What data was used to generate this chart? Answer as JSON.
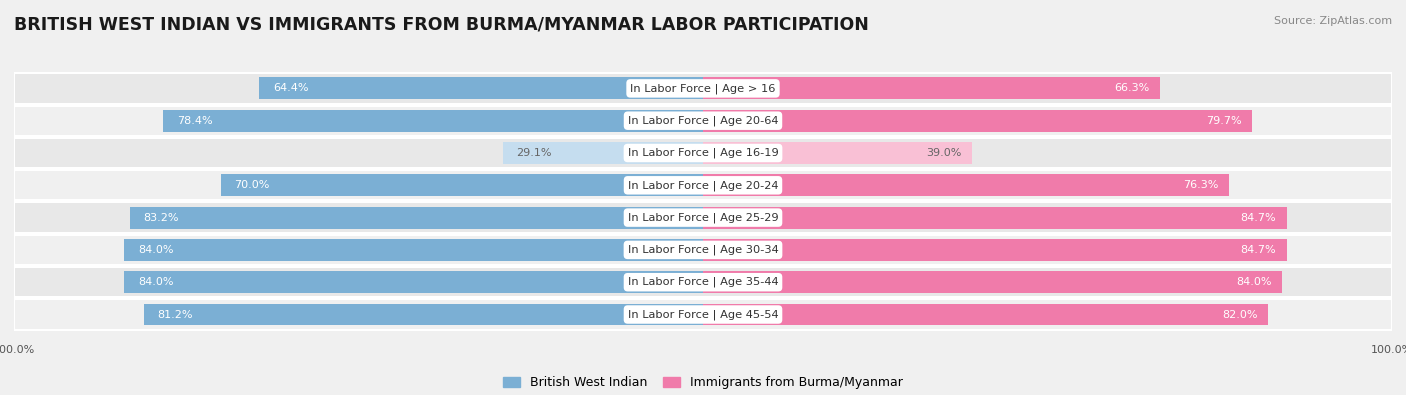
{
  "title": "BRITISH WEST INDIAN VS IMMIGRANTS FROM BURMA/MYANMAR LABOR PARTICIPATION",
  "source": "Source: ZipAtlas.com",
  "categories": [
    "In Labor Force | Age > 16",
    "In Labor Force | Age 20-64",
    "In Labor Force | Age 16-19",
    "In Labor Force | Age 20-24",
    "In Labor Force | Age 25-29",
    "In Labor Force | Age 30-34",
    "In Labor Force | Age 35-44",
    "In Labor Force | Age 45-54"
  ],
  "left_values": [
    64.4,
    78.4,
    29.1,
    70.0,
    83.2,
    84.0,
    84.0,
    81.2
  ],
  "right_values": [
    66.3,
    79.7,
    39.0,
    76.3,
    84.7,
    84.7,
    84.0,
    82.0
  ],
  "left_label": "British West Indian",
  "right_label": "Immigrants from Burma/Myanmar",
  "left_color_strong": "#7BAFD4",
  "left_color_light": "#C5DDEF",
  "right_color_strong": "#F07BAA",
  "right_color_light": "#F9C0D5",
  "bg_color": "#F0F0F0",
  "row_bg_even": "#E8E8E8",
  "row_bg_odd": "#F0F0F0",
  "center_label_bg": "#FFFFFF",
  "bar_height": 0.68,
  "max_value": 100.0,
  "title_fontsize": 12.5,
  "label_fontsize": 8.2,
  "value_fontsize": 8.0,
  "legend_fontsize": 9,
  "axis_label_fontsize": 8,
  "light_threshold": 50
}
